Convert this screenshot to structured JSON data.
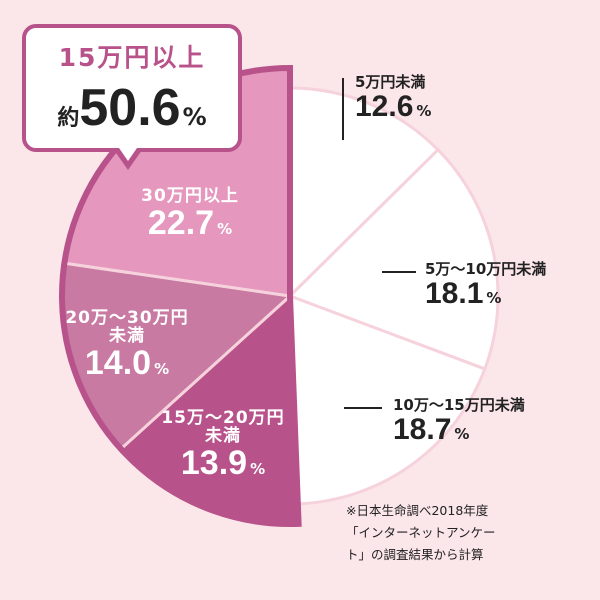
{
  "chart_data": {
    "type": "pie",
    "slices": [
      {
        "label": "5万円未満",
        "value": 12.6,
        "color": "#ffffff"
      },
      {
        "label": "5万～10万円未満",
        "value": 18.1,
        "color": "#ffffff"
      },
      {
        "label": "10万～15万円未満",
        "value": 18.7,
        "color": "#ffffff"
      },
      {
        "label": "15万～20万円未満",
        "value": 13.9,
        "color": "#b8528a"
      },
      {
        "label": "20万～30万円未満",
        "value": 14.0,
        "color": "#c87aa2"
      },
      {
        "label": "30万円以上",
        "value": 22.7,
        "color": "#e597bd"
      }
    ],
    "unit": "%",
    "callout": {
      "title": "15万円以上",
      "prefix": "約",
      "value": "50.6",
      "unit": "%"
    },
    "note": [
      "※日本生命調べ2018年度",
      "「インターネットアンケー",
      "ト」の調査結果から計算"
    ]
  },
  "labels": {
    "s0_name": "5万円未満",
    "s0_val": "12.6",
    "s1_name": "5万～10万円未満",
    "s1_val": "18.1",
    "s2_name": "10万～15万円未満",
    "s2_val": "18.7",
    "s3_name1": "15万～20万円",
    "s3_name2": "未満",
    "s3_val": "13.9",
    "s4_name1": "20万～30万円",
    "s4_name2": "未満",
    "s4_val": "14.0",
    "s5_name": "30万円以上",
    "s5_val": "22.7",
    "pct": "%"
  },
  "colors": {
    "background": "#fbe6ea",
    "highlight_border": "#b8528a",
    "divider": "#f6d2dc"
  }
}
